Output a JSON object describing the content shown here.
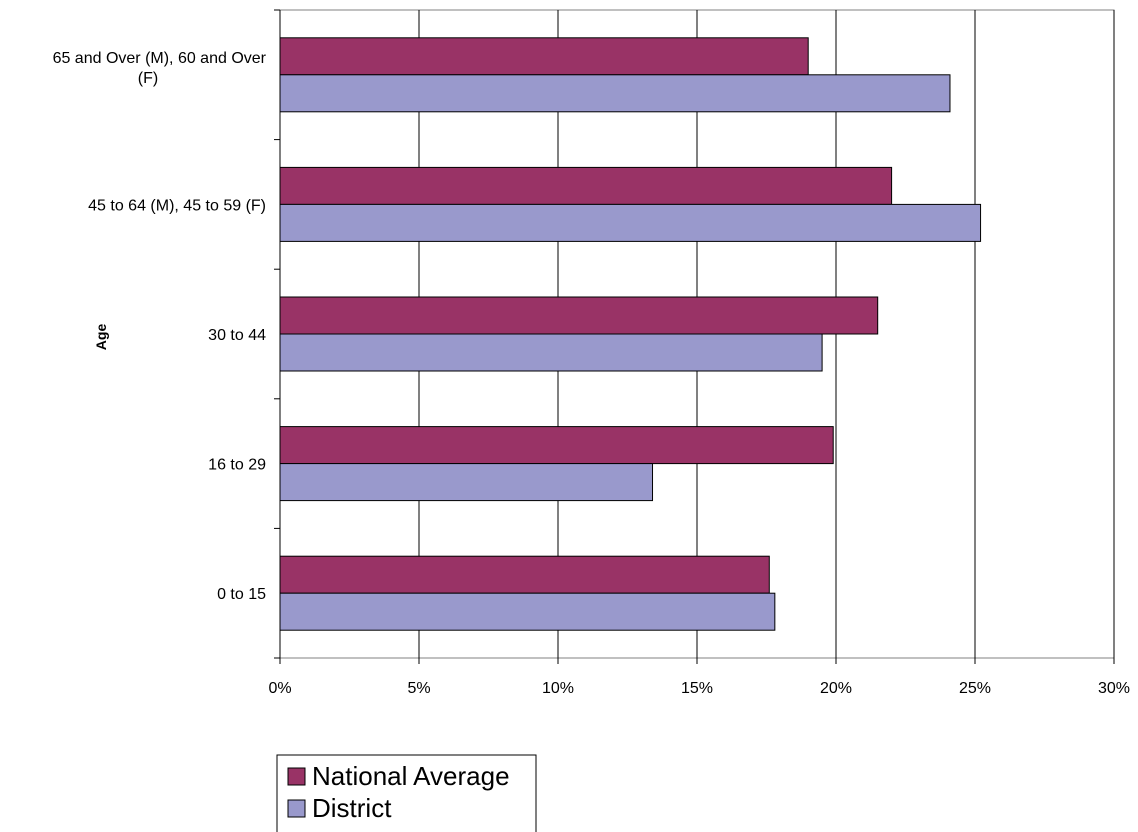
{
  "chart_data": {
    "type": "bar",
    "orientation": "horizontal",
    "categories": [
      "0 to 15",
      "16 to 29",
      "30 to 44",
      "45 to 64 (M), 45 to 59 (F)",
      "65 and Over (M), 60 and Over (F)"
    ],
    "category_label_lines": [
      [
        "0 to 15"
      ],
      [
        "16 to 29"
      ],
      [
        "30 to 44"
      ],
      [
        "45 to 64 (M), 45 to 59 (F)"
      ],
      [
        "65 and Over (M), 60 and Over",
        "(F)"
      ]
    ],
    "series": [
      {
        "name": "National Average",
        "color": "#993366",
        "values": [
          17.6,
          19.9,
          21.5,
          22.0,
          19.0
        ]
      },
      {
        "name": "District",
        "color": "#9999CC",
        "values": [
          17.8,
          13.4,
          19.5,
          25.2,
          24.1
        ]
      }
    ],
    "ylabel": "Age",
    "xlabel": "",
    "xlim": [
      0,
      30
    ],
    "x_ticks": [
      0,
      5,
      10,
      15,
      20,
      25,
      30
    ],
    "x_tick_labels": [
      "0%",
      "5%",
      "10%",
      "15%",
      "20%",
      "25%",
      "30%"
    ],
    "grid": "vertical",
    "legend_position": "bottom-left"
  }
}
